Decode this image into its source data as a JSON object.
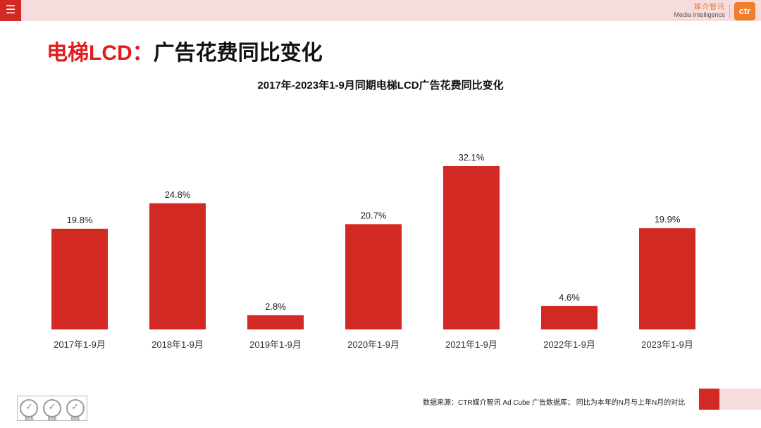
{
  "menu_icon": "hamburger-icon",
  "brand": {
    "cn": "媒介智讯",
    "en": "Media Intelligence",
    "logo": "ctr"
  },
  "page_title": {
    "highlight": "电梯LCD：",
    "rest": "广告花费同比变化"
  },
  "colors": {
    "accent": "#d22a22",
    "bar": "#d22a22",
    "topbar": "#f6dcdc",
    "brand_orange": "#ef7d2a"
  },
  "chart_data": {
    "type": "bar",
    "title": "2017年-2023年1-9月同期电梯LCD广告花费同比变化",
    "categories": [
      "2017年1-9月",
      "2018年1-9月",
      "2019年1-9月",
      "2020年1-9月",
      "2021年1-9月",
      "2022年1-9月",
      "2023年1-9月"
    ],
    "values": [
      19.8,
      24.8,
      2.8,
      20.7,
      32.1,
      4.6,
      19.9
    ],
    "value_labels": [
      "19.8%",
      "24.8%",
      "2.8%",
      "20.7%",
      "32.1%",
      "4.6%",
      "19.9%"
    ],
    "xlabel": "",
    "ylabel": "",
    "ylim": [
      0,
      32.1
    ],
    "grid": false,
    "legend": "none"
  },
  "footer": {
    "note": "数据来源：CTR媒介智讯 Ad Cube 广告数据库；  同比为本年的N月与上年N月的对比",
    "cert_labels": [
      "SGS",
      "SGS",
      "SGS"
    ]
  }
}
